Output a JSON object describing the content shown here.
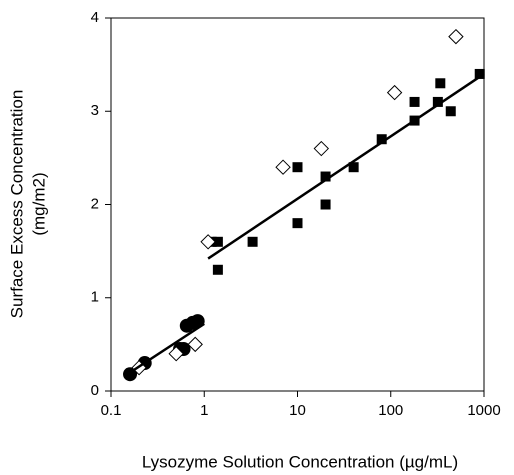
{
  "chart_data": {
    "type": "scatter",
    "xlabel": "Lysozyme Solution Concentration (µg/mL)",
    "ylabel": [
      "Surface Excess Concentration",
      "(mg/m2)"
    ],
    "xscale": "log",
    "xlim": [
      0.1,
      1000
    ],
    "xticks": [
      0.1,
      1,
      10,
      100,
      1000
    ],
    "ylim": [
      0,
      4
    ],
    "yticks": [
      0,
      1,
      2,
      3,
      4
    ],
    "series": [
      {
        "marker": "circle",
        "color": "#000000",
        "x": [
          0.16,
          0.23,
          0.55,
          0.6,
          0.65,
          0.75,
          0.85
        ],
        "values": [
          0.18,
          0.3,
          0.45,
          0.45,
          0.7,
          0.73,
          0.75
        ]
      },
      {
        "marker": "square",
        "color": "#000000",
        "x": [
          1.2,
          1.4,
          1.4,
          3.3,
          10,
          10,
          20,
          20,
          40,
          80,
          180,
          180,
          320,
          340,
          440,
          900
        ],
        "values": [
          1.6,
          1.6,
          1.3,
          1.6,
          2.4,
          1.8,
          2.3,
          2.0,
          2.4,
          2.7,
          3.1,
          2.9,
          3.1,
          3.3,
          3.0,
          3.4
        ]
      },
      {
        "marker": "diamond",
        "color": "#000000",
        "x": [
          0.2,
          0.5,
          0.8,
          1.1,
          7,
          18,
          110,
          500
        ],
        "values": [
          0.25,
          0.4,
          0.5,
          1.6,
          2.4,
          2.6,
          3.2,
          3.8
        ]
      },
      {
        "marker": "line",
        "color": "#000000",
        "x": [
          0.15,
          1.0
        ],
        "values": [
          0.18,
          0.72
        ]
      },
      {
        "marker": "line",
        "color": "#000000",
        "x": [
          1.1,
          1000
        ],
        "values": [
          1.42,
          3.4
        ]
      }
    ]
  }
}
